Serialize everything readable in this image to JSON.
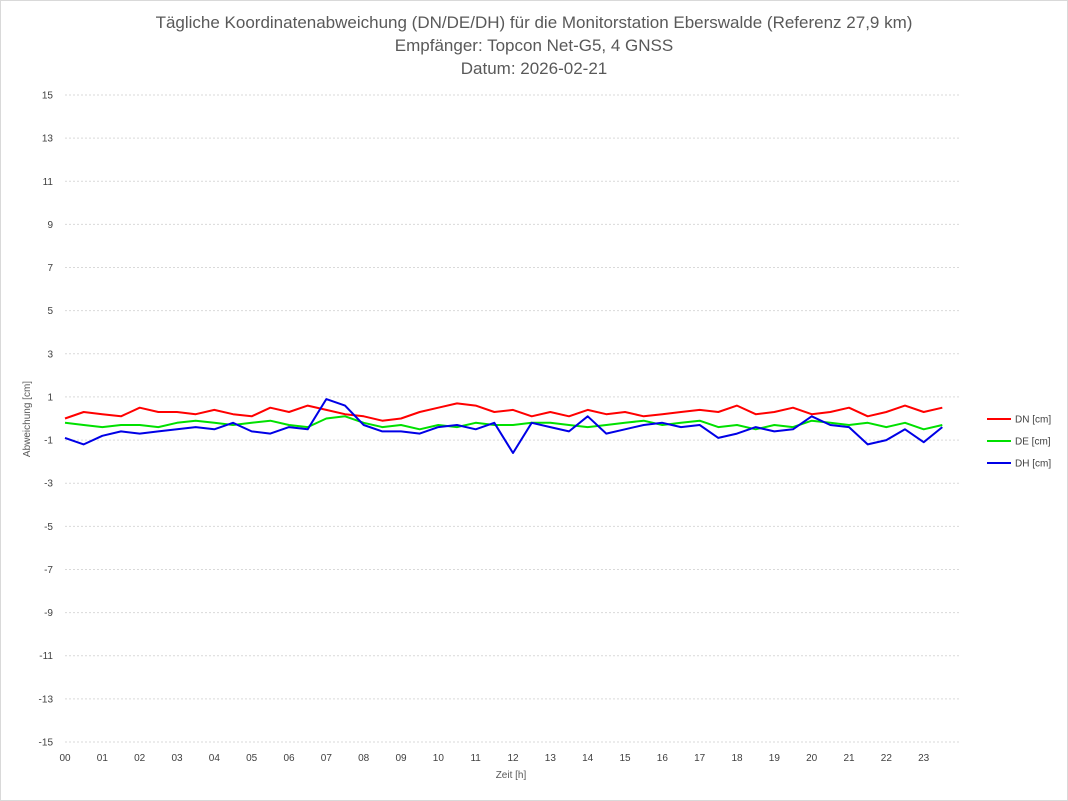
{
  "chart_data": {
    "type": "line",
    "title": [
      "Tägliche Koordinatenabweichung (DN/DE/DH) für die Monitorstation Eberswalde (Referenz 27,9 km)",
      "Empfänger: Topcon Net-G5, 4 GNSS",
      "Datum: 2026-02-21"
    ],
    "xlabel": "Zeit [h]",
    "ylabel": "Abweichung [cm]",
    "ylim": [
      -15,
      15
    ],
    "xlim": [
      0,
      24
    ],
    "x_ticks": [
      "00",
      "01",
      "02",
      "03",
      "04",
      "05",
      "06",
      "07",
      "08",
      "09",
      "10",
      "11",
      "12",
      "13",
      "14",
      "15",
      "16",
      "17",
      "18",
      "19",
      "20",
      "21",
      "22",
      "23"
    ],
    "y_ticks": [
      "15",
      "13",
      "11",
      "9",
      "7",
      "5",
      "3",
      "1",
      "-1",
      "-3",
      "-5",
      "-7",
      "-9",
      "-11",
      "-13",
      "-15"
    ],
    "grid": true,
    "legend_position": "right",
    "sample_interval_h": 0.5,
    "series": [
      {
        "name": "DN [cm]",
        "color": "#ff0000",
        "values": [
          0.0,
          0.3,
          0.2,
          0.1,
          0.5,
          0.3,
          0.3,
          0.2,
          0.4,
          0.2,
          0.1,
          0.5,
          0.3,
          0.6,
          0.4,
          0.2,
          0.1,
          -0.1,
          0.0,
          0.3,
          0.5,
          0.7,
          0.6,
          0.3,
          0.4,
          0.1,
          0.3,
          0.1,
          0.4,
          0.2,
          0.3,
          0.1,
          0.2,
          0.3,
          0.4,
          0.3,
          0.6,
          0.2,
          0.3,
          0.5,
          0.2,
          0.3,
          0.5,
          0.1,
          0.3,
          0.6,
          0.3,
          0.5
        ]
      },
      {
        "name": "DE [cm]",
        "color": "#00e000",
        "values": [
          -0.2,
          -0.3,
          -0.4,
          -0.3,
          -0.3,
          -0.4,
          -0.2,
          -0.1,
          -0.2,
          -0.3,
          -0.2,
          -0.1,
          -0.3,
          -0.4,
          0.0,
          0.1,
          -0.2,
          -0.4,
          -0.3,
          -0.5,
          -0.3,
          -0.4,
          -0.2,
          -0.3,
          -0.3,
          -0.2,
          -0.2,
          -0.3,
          -0.4,
          -0.3,
          -0.2,
          -0.1,
          -0.3,
          -0.2,
          -0.1,
          -0.4,
          -0.3,
          -0.5,
          -0.3,
          -0.4,
          -0.1,
          -0.2,
          -0.3,
          -0.2,
          -0.4,
          -0.2,
          -0.5,
          -0.3
        ]
      },
      {
        "name": "DH [cm]",
        "color": "#0000e6",
        "values": [
          -0.9,
          -1.2,
          -0.8,
          -0.6,
          -0.7,
          -0.6,
          -0.5,
          -0.4,
          -0.5,
          -0.2,
          -0.6,
          -0.7,
          -0.4,
          -0.5,
          0.9,
          0.6,
          -0.3,
          -0.6,
          -0.6,
          -0.7,
          -0.4,
          -0.3,
          -0.5,
          -0.2,
          -1.6,
          -0.2,
          -0.4,
          -0.6,
          0.1,
          -0.7,
          -0.5,
          -0.3,
          -0.2,
          -0.4,
          -0.3,
          -0.9,
          -0.7,
          -0.4,
          -0.6,
          -0.5,
          0.1,
          -0.3,
          -0.4,
          -1.2,
          -1.0,
          -0.5,
          -1.1,
          -0.4
        ]
      }
    ]
  }
}
